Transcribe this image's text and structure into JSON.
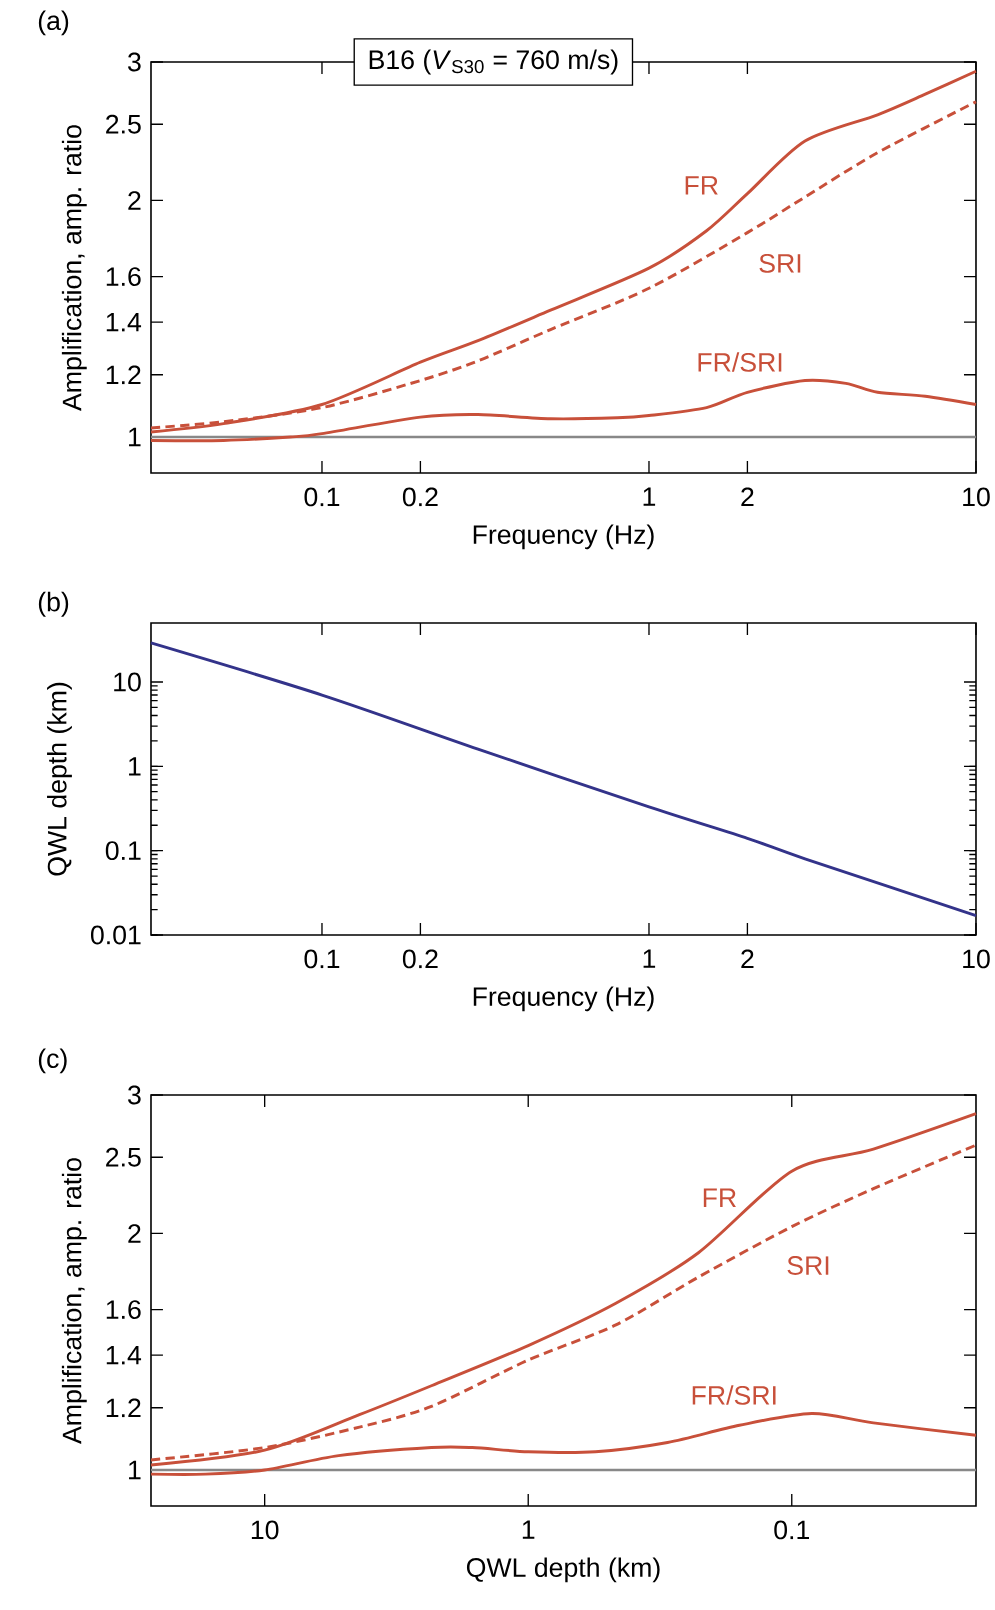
{
  "chart_data": [
    {
      "type": "line",
      "title": "B16 (*V*$_{S30}$ = 760 m/s)",
      "xlabel": "Frequency (Hz)",
      "ylabel": "Amplification, amp. ratio",
      "log": "xy",
      "xlim": [
        0.03,
        10
      ],
      "ylim": [
        0.9,
        3
      ],
      "xticks": [
        0.1,
        0.2,
        1,
        2,
        10
      ],
      "yticks": [
        1,
        1.2,
        1.4,
        1.6,
        2,
        2.5,
        3
      ],
      "annotations": [
        "(a)"
      ],
      "ref_lines": [
        {
          "axis": "y",
          "value": 1,
          "color": "#888888"
        }
      ],
      "series": [
        {
          "name": "FR",
          "color": "#c8503a",
          "x": [
            0.03,
            0.05,
            0.1,
            0.2,
            0.3,
            0.5,
            1,
            1.5,
            2,
            3,
            5,
            7,
            10
          ],
          "values": [
            1.015,
            1.04,
            1.1,
            1.245,
            1.326,
            1.45,
            1.64,
            1.83,
            2.04,
            2.38,
            2.57,
            2.73,
            2.92
          ]
        },
        {
          "name": "SRI",
          "color": "#c8503a",
          "line_style": "dashed",
          "x": [
            0.03,
            0.05,
            0.1,
            0.2,
            0.3,
            0.5,
            1,
            2,
            3,
            5,
            10
          ],
          "values": [
            1.027,
            1.046,
            1.09,
            1.18,
            1.25,
            1.37,
            1.546,
            1.82,
            2.02,
            2.3,
            2.67
          ]
        },
        {
          "name": "FR/SRI",
          "color": "#c8503a",
          "x": [
            0.03,
            0.05,
            0.08,
            0.1,
            0.2,
            0.3,
            0.5,
            0.8,
            1,
            1.5,
            2,
            3,
            4,
            5,
            7,
            10
          ],
          "values": [
            0.99,
            0.99,
            1.0,
            1.01,
            1.06,
            1.068,
            1.055,
            1.058,
            1.065,
            1.09,
            1.14,
            1.18,
            1.17,
            1.14,
            1.127,
            1.1
          ]
        }
      ]
    },
    {
      "type": "line",
      "xlabel": "Frequency (Hz)",
      "ylabel": "QWL depth (km)",
      "log": "xy",
      "xlim": [
        0.03,
        10
      ],
      "ylim": [
        0.01,
        50
      ],
      "xticks": [
        0.1,
        0.2,
        1,
        2,
        10
      ],
      "yticks": [
        0.01,
        0.1,
        1,
        10
      ],
      "annotations": [
        "(b)"
      ],
      "series": [
        {
          "color": "#33338a",
          "x": [
            0.03,
            0.1,
            0.3,
            1,
            2,
            3,
            10
          ],
          "values": [
            29,
            7,
            1.6,
            0.33,
            0.14,
            0.08,
            0.017
          ]
        }
      ]
    },
    {
      "type": "line",
      "xlabel": "QWL depth (km)",
      "ylabel": "Amplification, amp. ratio",
      "log": "xy",
      "xlim": [
        27,
        0.02
      ],
      "ylim": [
        0.9,
        3
      ],
      "xticks": [
        10,
        1,
        0.1
      ],
      "yticks": [
        1,
        1.2,
        1.4,
        1.6,
        2,
        2.5,
        3
      ],
      "annotations": [
        "(c)"
      ],
      "ref_lines": [
        {
          "axis": "y",
          "value": 1,
          "color": "#888888"
        }
      ],
      "series": [
        {
          "name": "FR",
          "color": "#c8503a",
          "x": [
            27,
            10,
            4.37,
            2.33,
            1,
            0.465,
            0.226,
            0.1,
            0.049,
            0.02
          ],
          "values": [
            1.015,
            1.06,
            1.176,
            1.28,
            1.44,
            1.63,
            1.89,
            2.4,
            2.56,
            2.84
          ]
        },
        {
          "name": "SRI",
          "color": "#c8503a",
          "line_style": "dashed",
          "x": [
            27,
            10,
            4.37,
            2.33,
            1,
            0.465,
            0.226,
            0.1,
            0.049,
            0.02
          ],
          "values": [
            1.03,
            1.068,
            1.134,
            1.205,
            1.38,
            1.53,
            1.76,
            2.04,
            2.28,
            2.59
          ]
        },
        {
          "name": "FR/SRI",
          "color": "#c8503a",
          "x": [
            27,
            16.8,
            10,
            5.24,
            2.33,
            1.63,
            1,
            0.556,
            0.296,
            0.158,
            0.084,
            0.049,
            0.02
          ],
          "values": [
            0.988,
            0.988,
            1.0,
            1.043,
            1.068,
            1.068,
            1.055,
            1.055,
            1.084,
            1.14,
            1.18,
            1.148,
            1.107
          ]
        }
      ]
    }
  ]
}
